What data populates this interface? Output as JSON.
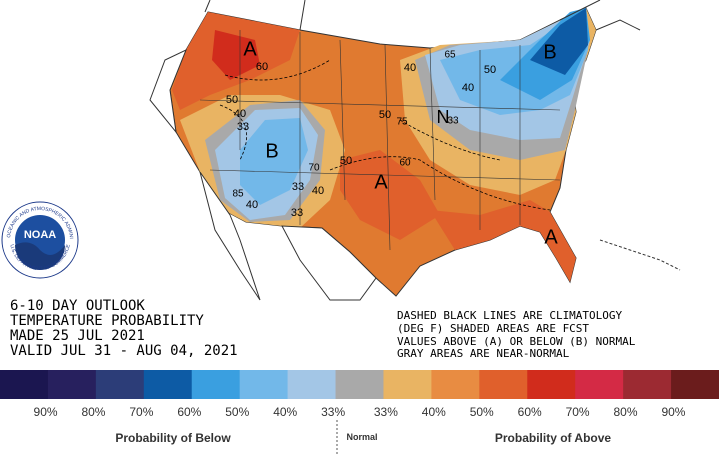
{
  "map": {
    "labels": [
      "A",
      "60",
      "50",
      "40",
      "33",
      "B",
      "70",
      "50",
      "33",
      "40",
      "33",
      "85",
      "40",
      "A",
      "60",
      "50",
      "75",
      "40",
      "65",
      "50",
      "40",
      "N",
      "33",
      "B",
      "A"
    ]
  },
  "logo": {
    "name": "NOAA",
    "ring": "NATIONAL OCEANIC AND ATMOSPHERIC ADMINISTRATION",
    "ring_bottom": "U.S. DEPARTMENT OF COMMERCE"
  },
  "outlook": [
    "6-10 DAY OUTLOOK",
    "TEMPERATURE PROBABILITY",
    "MADE  25 JUL 2021",
    "VALID  JUL 31 - AUG 04, 2021"
  ],
  "notes": [
    "DASHED BLACK LINES ARE CLIMATOLOGY",
    "(DEG F) SHADED AREAS ARE FCST",
    "VALUES ABOVE (A) OR BELOW (B) NORMAL",
    "GRAY AREAS ARE NEAR-NORMAL"
  ],
  "legend": {
    "colors": [
      "#1b1650",
      "#27205e",
      "#2c3d78",
      "#0d5ba5",
      "#3a9fe0",
      "#72b8e9",
      "#a3c6e6",
      "#a9a9a9",
      "#e9b463",
      "#e88c42",
      "#e0602c",
      "#d12c1c",
      "#d42a45",
      "#9c2a32",
      "#6b1c1c"
    ],
    "labels": [
      "90%",
      "80%",
      "70%",
      "60%",
      "50%",
      "40%",
      "33%",
      "33%",
      "40%",
      "50%",
      "60%",
      "70%",
      "80%",
      "90%"
    ],
    "below": "Probability of Below",
    "normal": "Normal",
    "above": "Probability of Above"
  }
}
